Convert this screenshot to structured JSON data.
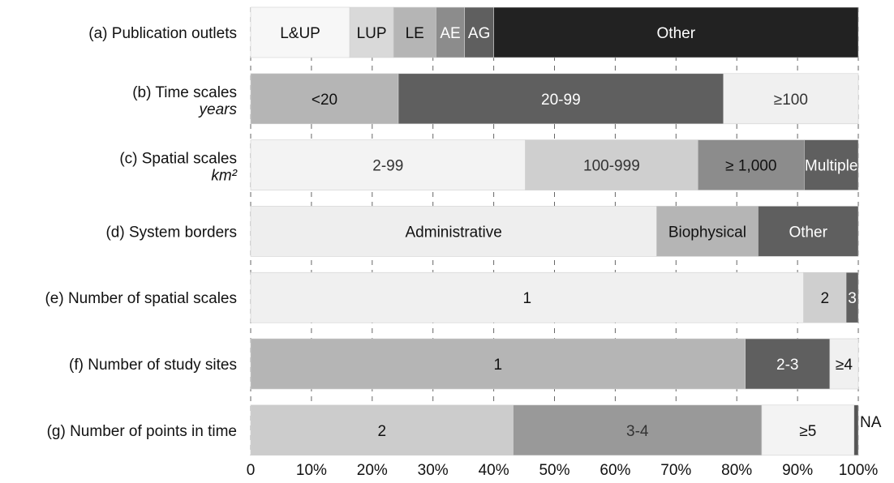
{
  "chart_data": {
    "type": "bar",
    "orientation": "horizontal",
    "stacked": true,
    "title": "",
    "xlabel": "",
    "ylabel": "",
    "xlim": [
      0,
      100
    ],
    "x_ticks": [
      "0",
      "10%",
      "20%",
      "30%",
      "40%",
      "50%",
      "60%",
      "70%",
      "80%",
      "90%",
      "100%"
    ],
    "grid": "vertical dashed",
    "rows": [
      {
        "label": "(a) Publication outlets",
        "sublabel": "",
        "segments": [
          {
            "label": "L&UP",
            "value": 16.3,
            "color": "#f7f7f7",
            "text_color": "#111111"
          },
          {
            "label": "LUP",
            "value": 7.2,
            "color": "#d9d9d9",
            "text_color": "#111111"
          },
          {
            "label": "LE",
            "value": 7.0,
            "color": "#b5b5b5",
            "text_color": "#111111"
          },
          {
            "label": "AE",
            "value": 4.7,
            "color": "#8c8c8c",
            "text_color": "#ffffff"
          },
          {
            "label": "AG",
            "value": 4.8,
            "color": "#5f5f5f",
            "text_color": "#ffffff"
          },
          {
            "label": "Other",
            "value": 60.0,
            "color": "#222222",
            "text_color": "#ffffff"
          }
        ]
      },
      {
        "label": "(b) Time scales",
        "sublabel": "years",
        "segments": [
          {
            "label": "<20",
            "value": 24.3,
            "color": "#b5b5b5",
            "text_color": "#111111"
          },
          {
            "label": "20-99",
            "value": 53.5,
            "color": "#5f5f5f",
            "text_color": "#ffffff"
          },
          {
            "label": "≥100",
            "value": 22.2,
            "color": "#f0f0f0",
            "text_color": "#333333"
          }
        ]
      },
      {
        "label": "(c) Spatial scales",
        "sublabel": "km²",
        "segments": [
          {
            "label": "2-99",
            "value": 45.2,
            "color": "#f3f3f3",
            "text_color": "#333333"
          },
          {
            "label": "100-999",
            "value": 28.4,
            "color": "#cfcfcf",
            "text_color": "#333333"
          },
          {
            "label": "≥ 1,000",
            "value": 17.5,
            "color": "#8c8c8c",
            "text_color": "#111111"
          },
          {
            "label": "Multiple",
            "value": 8.9,
            "color": "#5f5f5f",
            "text_color": "#ffffff"
          }
        ]
      },
      {
        "label": "(d) System borders",
        "sublabel": "",
        "segments": [
          {
            "label": "Administrative",
            "value": 66.8,
            "color": "#eeeeee",
            "text_color": "#111111"
          },
          {
            "label": "Biophysical",
            "value": 16.7,
            "color": "#b5b5b5",
            "text_color": "#111111"
          },
          {
            "label": "Other",
            "value": 16.5,
            "color": "#5f5f5f",
            "text_color": "#ffffff"
          }
        ]
      },
      {
        "label": "(e) Number of spatial scales",
        "sublabel": "",
        "segments": [
          {
            "label": "1",
            "value": 91.0,
            "color": "#f0f0f0",
            "text_color": "#111111"
          },
          {
            "label": "2",
            "value": 7.0,
            "color": "#cfcfcf",
            "text_color": "#111111"
          },
          {
            "label": "3",
            "value": 2.0,
            "color": "#5f5f5f",
            "text_color": "#ffffff"
          }
        ]
      },
      {
        "label": "(f) Number of study sites",
        "sublabel": "",
        "segments": [
          {
            "label": "1",
            "value": 81.4,
            "color": "#b5b5b5",
            "text_color": "#111111"
          },
          {
            "label": "2-3",
            "value": 13.9,
            "color": "#5f5f5f",
            "text_color": "#ffffff"
          },
          {
            "label": "≥4",
            "value": 4.7,
            "color": "#f0f0f0",
            "text_color": "#111111"
          }
        ]
      },
      {
        "label": "(g) Number of points in time",
        "sublabel": "",
        "segments": [
          {
            "label": "2",
            "value": 43.2,
            "color": "#cccccc",
            "text_color": "#111111"
          },
          {
            "label": "3-4",
            "value": 40.9,
            "color": "#999999",
            "text_color": "#333333"
          },
          {
            "label": "≥5",
            "value": 15.2,
            "color": "#f3f3f3",
            "text_color": "#111111"
          },
          {
            "label": "NA",
            "value": 0.7,
            "color": "#555555",
            "text_color": "#111111",
            "label_outside": true
          }
        ]
      }
    ]
  }
}
